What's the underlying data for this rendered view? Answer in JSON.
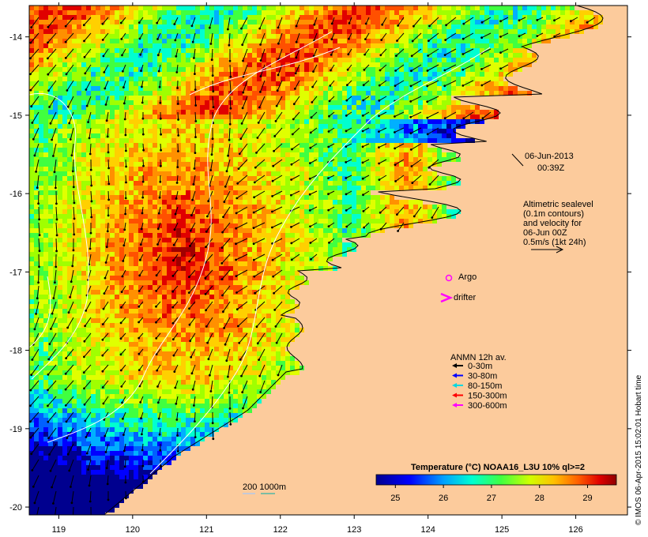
{
  "map": {
    "x_ticks": [
      "119",
      "120",
      "121",
      "122",
      "123",
      "124",
      "125",
      "126"
    ],
    "y_ticks": [
      "-14",
      "-15",
      "-16",
      "-17",
      "-18",
      "-19",
      "-20"
    ],
    "lon_range": [
      118.6,
      126.7
    ],
    "lat_range": [
      -20.1,
      -13.6
    ]
  },
  "annotations": {
    "date": "06-Jun-2013",
    "time": "00:39Z",
    "altimetry_lines": [
      "Altimetric sealevel",
      "(0.1m contours)",
      "and velocity for",
      "06-Jun 00Z",
      "0.5m/s (1kt 24h)"
    ],
    "argo_label": "Argo",
    "drifter_label": "drifter",
    "depth_label": "200  1000m"
  },
  "legend": {
    "title": "ANMN 12h av.",
    "items": [
      {
        "label": "0-30m",
        "color": "#000000"
      },
      {
        "label": "30-80m",
        "color": "#0000ff"
      },
      {
        "label": "80-150m",
        "color": "#00d8e0"
      },
      {
        "label": "150-300m",
        "color": "#ff0000"
      },
      {
        "label": "300-600m",
        "color": "#ff00ff"
      }
    ]
  },
  "colorbar": {
    "title": "Temperature (°C) NOAA16_L3U 10% ql>=2",
    "ticks": [
      "25",
      "26",
      "27",
      "28",
      "29"
    ],
    "range": [
      24.6,
      29.6
    ]
  },
  "credit": "© IMOS 06-Apr-2015 15:02:01 Hobart time",
  "colors": {
    "land": "#fccb9c",
    "frame": "#000000"
  }
}
